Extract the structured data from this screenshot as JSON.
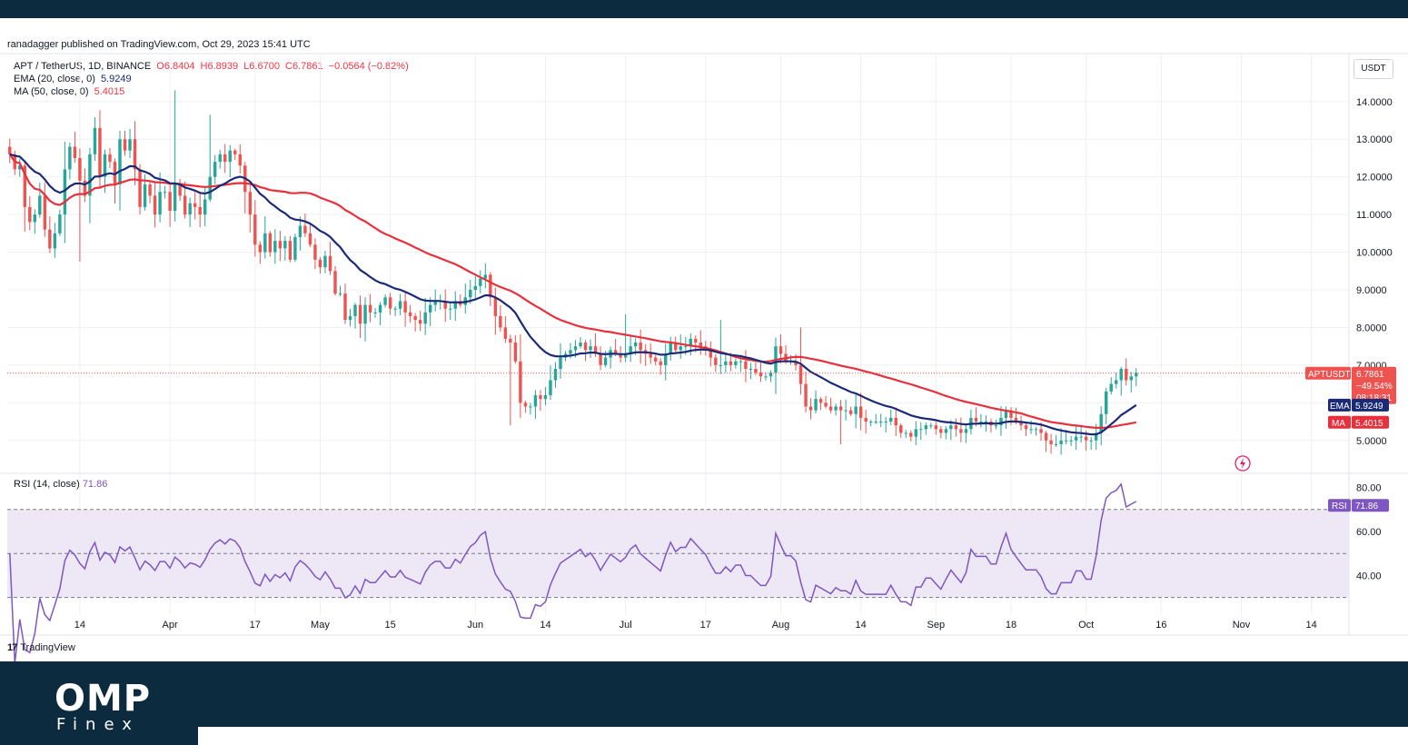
{
  "header": {
    "publish_line": "ranadagger published on TradingView.com, Oct 29, 2023 15:41 UTC"
  },
  "legend": {
    "symbol": "APT / TetherUS, 1D, BINANCE",
    "open": "O6.8404",
    "high": "H6.8939",
    "low": "L6.6700",
    "close": "C6.7861",
    "change": "−0.0564 (−0.82%)",
    "ema_label": "EMA (20, close, 0)",
    "ema_value": "5.9249",
    "ma_label": "MA (50, close, 0)",
    "ma_value": "5.4015",
    "rsi_label": "RSI (14, close)",
    "rsi_value": "71.86"
  },
  "currency_button": "USDT",
  "footer": {
    "tv_mark": "17",
    "tv_name": "TradingView"
  },
  "brand": {
    "name": "OMP",
    "sub": "Finex"
  },
  "colors": {
    "up": "#26a69a",
    "down": "#ef5350",
    "ema": "#1b2a78",
    "ma": "#e8303d",
    "rsi": "#7e57c2",
    "rsi_band": "#ede7f6",
    "grid": "#eef0f3",
    "background": "#ffffff",
    "page": "#0d2b3e"
  },
  "chart_data": [
    {
      "type": "candlestick",
      "symbol": "APTUSDT",
      "y_axis_ticks": [
        "14.0000",
        "13.0000",
        "12.0000",
        "11.0000",
        "10.0000",
        "9.0000",
        "8.0000",
        "7.0000",
        "5.0000"
      ],
      "y_axis_values": [
        14,
        13,
        12,
        11,
        10,
        9,
        8,
        7,
        5
      ],
      "ylim": [
        4.15,
        15.25
      ],
      "x_axis_labels": [
        "14",
        "Apr",
        "17",
        "May",
        "15",
        "Jun",
        "14",
        "Jul",
        "17",
        "Aug",
        "14",
        "Sep",
        "18",
        "Oct",
        "16",
        "Nov",
        "14"
      ],
      "x_axis_days": [
        14,
        32,
        49,
        62,
        76,
        93,
        107,
        123,
        139,
        154,
        170,
        185,
        200,
        215,
        230,
        246,
        260
      ],
      "last_price": 6.7861,
      "price_labels": {
        "symbol_tag": "APTUSDT",
        "price": "6.7861",
        "change": "−49.54%",
        "countdown": "08:18:31",
        "ema_tag": "EMA",
        "ema_value": "5.9249",
        "ma_tag": "MA",
        "ma_value": "5.4015"
      },
      "close_series": [
        12.6,
        12.2,
        12.3,
        11.2,
        10.8,
        11.0,
        11.5,
        10.6,
        10.1,
        10.5,
        11.0,
        12.2,
        12.8,
        12.5,
        11.9,
        11.5,
        12.6,
        13.3,
        12.0,
        12.6,
        12.4,
        11.8,
        13.0,
        12.7,
        13.0,
        12.2,
        11.2,
        11.8,
        11.5,
        11.0,
        11.6,
        11.6,
        11.1,
        11.8,
        11.5,
        11.0,
        11.3,
        11.2,
        11.0,
        11.4,
        12.0,
        12.4,
        12.6,
        12.4,
        12.7,
        12.6,
        12.3,
        11.6,
        11.0,
        10.2,
        10.0,
        10.5,
        10.0,
        10.3,
        10.1,
        10.3,
        9.8,
        10.4,
        10.7,
        10.5,
        10.2,
        9.8,
        9.6,
        9.9,
        9.5,
        8.9,
        8.9,
        8.2,
        8.3,
        8.6,
        8.1,
        8.6,
        8.4,
        8.4,
        8.6,
        8.8,
        8.5,
        8.5,
        8.7,
        8.4,
        8.3,
        8.2,
        8.1,
        8.4,
        8.6,
        8.7,
        8.7,
        8.5,
        8.5,
        8.7,
        8.6,
        8.8,
        9.0,
        9.1,
        9.3,
        9.4,
        8.8,
        8.3,
        8.0,
        7.7,
        7.6,
        7.1,
        6.0,
        5.9,
        5.9,
        6.2,
        6.1,
        6.2,
        6.6,
        6.9,
        7.2,
        7.3,
        7.4,
        7.5,
        7.6,
        7.4,
        7.5,
        7.3,
        7.0,
        7.2,
        7.4,
        7.3,
        7.2,
        7.3,
        7.5,
        7.6,
        7.4,
        7.3,
        7.2,
        7.1,
        7.0,
        7.3,
        7.6,
        7.4,
        7.5,
        7.5,
        7.7,
        7.6,
        7.5,
        7.4,
        7.2,
        7.0,
        7.0,
        7.1,
        7.0,
        7.1,
        7.1,
        6.9,
        6.9,
        6.8,
        6.7,
        6.7,
        6.8,
        7.5,
        7.3,
        7.1,
        7.1,
        7.0,
        6.5,
        5.9,
        5.8,
        6.1,
        6.0,
        5.9,
        5.8,
        5.9,
        5.8,
        5.8,
        5.7,
        5.9,
        5.6,
        5.5,
        5.5,
        5.5,
        5.5,
        5.5,
        5.6,
        5.4,
        5.2,
        5.2,
        5.1,
        5.3,
        5.3,
        5.4,
        5.4,
        5.3,
        5.2,
        5.3,
        5.4,
        5.3,
        5.2,
        5.3,
        5.6,
        5.5,
        5.5,
        5.5,
        5.4,
        5.4,
        5.6,
        5.8,
        5.6,
        5.5,
        5.4,
        5.3,
        5.3,
        5.3,
        5.2,
        5.0,
        4.9,
        4.9,
        5.0,
        5.0,
        5.0,
        5.1,
        5.1,
        5.0,
        5.0,
        5.2,
        5.7,
        6.3,
        6.5,
        6.6,
        6.9,
        6.6,
        6.7,
        6.8
      ],
      "series": [
        {
          "name": "EMA (20, close, 0)",
          "value": 5.9249
        },
        {
          "name": "MA (50, close, 0)",
          "value": 5.4015
        }
      ]
    },
    {
      "type": "line",
      "name": "RSI (14, close)",
      "y_axis_ticks": [
        "80.00",
        "60.00",
        "40.00"
      ],
      "y_axis_values": [
        80,
        60,
        40
      ],
      "ylim": [
        22,
        86
      ],
      "bands": [
        30,
        50,
        70
      ],
      "last_value": 71.86
    }
  ]
}
